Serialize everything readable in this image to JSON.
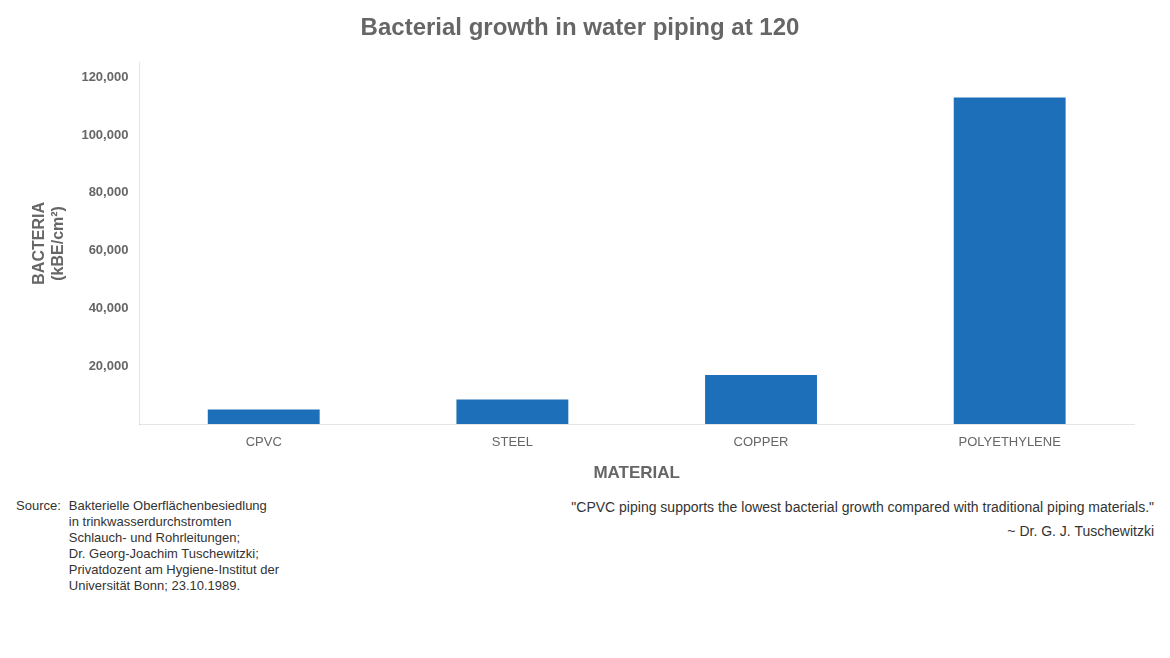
{
  "chart_data": {
    "type": "bar",
    "title": "Bacterial growth in water piping at 120",
    "categories": [
      "CPVC",
      "STEEL",
      "COPPER",
      "POLYETHYLENE"
    ],
    "values": [
      5000,
      8500,
      17000,
      113000
    ],
    "color": "#1E6FBA",
    "xlabel": "MATERIAL",
    "ylabel": [
      "BACTERIA",
      "(kBE/cm²)"
    ],
    "ylim": [
      0,
      125000
    ],
    "yticks": [
      {
        "value": 20000,
        "label": "20,000"
      },
      {
        "value": 40000,
        "label": "40,000"
      },
      {
        "value": 60000,
        "label": "60,000"
      },
      {
        "value": 80000,
        "label": "80,000"
      },
      {
        "value": 100000,
        "label": "100,000"
      },
      {
        "value": 120000,
        "label": "120,000"
      }
    ],
    "grid": false,
    "annotations": [
      "Source:",
      "Bakterielle Oberflächenbesiedlung\nin trinkwasserdurchstromten\nSchlauch- und Rohrleitungen;\nDr. Georg-Joachim Tuschewitzki;\nPrivatdozent am Hygiene-Institut der\nUniversität Bonn; 23.10.1989.",
      "\"CPVC piping supports the lowest bacterial growth compared with traditional piping materials.\"",
      "~ Dr. G. J. Tuschewitzki"
    ]
  }
}
